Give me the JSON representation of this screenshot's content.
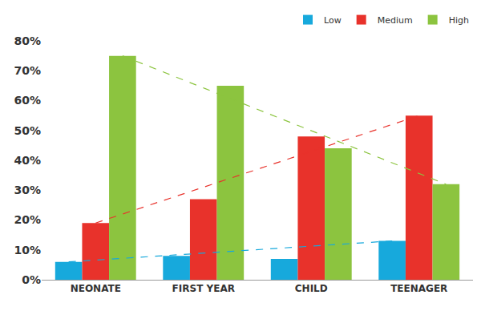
{
  "chart_data": {
    "type": "bar",
    "categories": [
      "NEONATE",
      "FIRST YEAR",
      "CHILD",
      "TEENAGER"
    ],
    "series": [
      {
        "name": "Low",
        "color": "#17a9dc",
        "values": [
          6,
          8,
          7,
          13
        ],
        "line_style": "dashed"
      },
      {
        "name": "Medium",
        "color": "#e8322b",
        "values": [
          19,
          27,
          48,
          55
        ],
        "line_style": "dashed"
      },
      {
        "name": "High",
        "color": "#8cc43f",
        "values": [
          75,
          65,
          44,
          32
        ],
        "line_style": "dashed"
      }
    ],
    "ylim": [
      0,
      80
    ],
    "yticks": [
      {
        "value": 0,
        "label": "0%"
      },
      {
        "value": 10,
        "label": "10%"
      },
      {
        "value": 20,
        "label": "20%"
      },
      {
        "value": 30,
        "label": "30%"
      },
      {
        "value": 40,
        "label": "40%"
      },
      {
        "value": 50,
        "label": "50%"
      },
      {
        "value": 60,
        "label": "60%"
      },
      {
        "value": 70,
        "label": "70%"
      },
      {
        "value": 80,
        "label": "80%"
      }
    ],
    "grid": false,
    "legend": "top right"
  }
}
